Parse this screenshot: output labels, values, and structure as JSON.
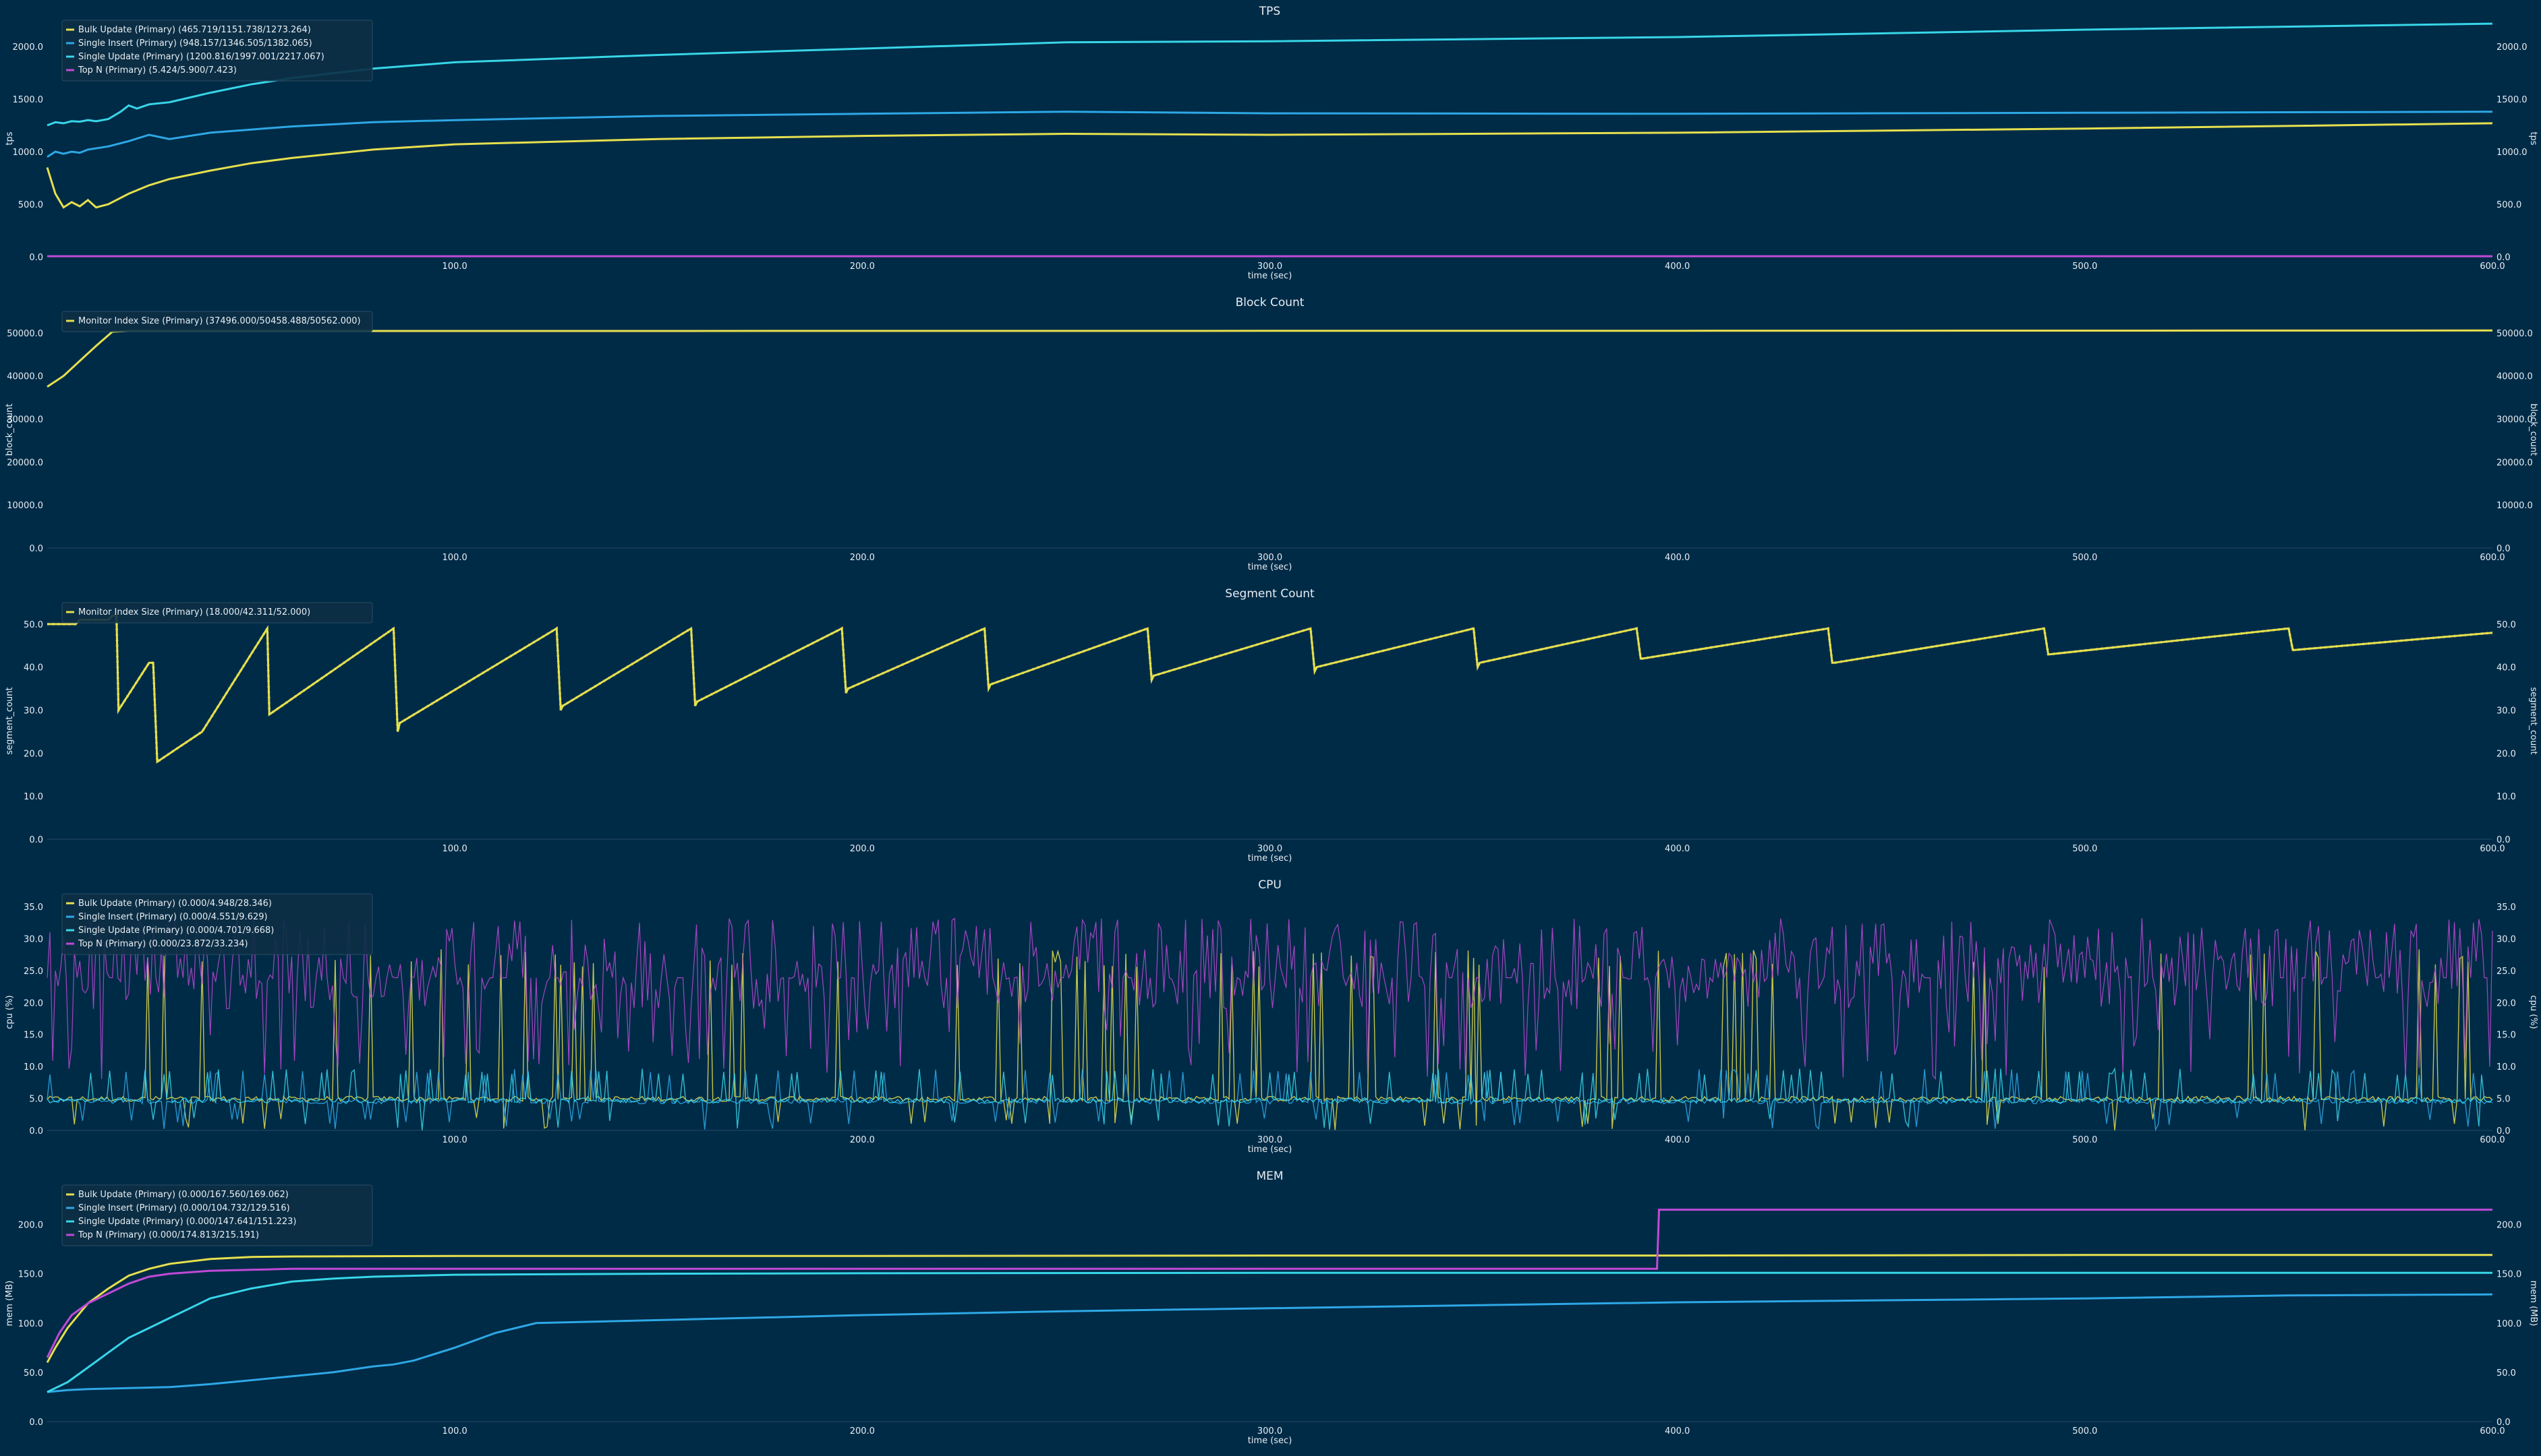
{
  "chart_data": [
    {
      "type": "line",
      "title": "TPS",
      "xlabel": "time (sec)",
      "ylabel": "tps",
      "xlim": [
        0,
        600
      ],
      "ylim": [
        0,
        2250
      ],
      "xticks": [
        "100.0",
        "200.0",
        "300.0",
        "400.0",
        "500.0",
        "600.0"
      ],
      "yticks": [
        "0.0",
        "500.0",
        "1000.0",
        "1500.0",
        "2000.0"
      ],
      "legend_position": "top-left",
      "series": [
        {
          "name": "Bulk Update (Primary) (465.719/1151.738/1273.264)",
          "color": "#e6e04e",
          "x": [
            0,
            2,
            4,
            6,
            8,
            10,
            12,
            15,
            20,
            25,
            30,
            40,
            50,
            60,
            80,
            100,
            150,
            200,
            250,
            300,
            400,
            500,
            600
          ],
          "y": [
            850,
            600,
            470,
            520,
            480,
            540,
            470,
            500,
            600,
            680,
            740,
            820,
            890,
            940,
            1020,
            1070,
            1120,
            1150,
            1170,
            1160,
            1180,
            1220,
            1270
          ]
        },
        {
          "name": "Single Insert (Primary) (948.157/1346.505/1382.065)",
          "color": "#2ea8e6",
          "x": [
            0,
            2,
            4,
            6,
            8,
            10,
            15,
            20,
            25,
            30,
            40,
            50,
            60,
            80,
            100,
            150,
            200,
            250,
            300,
            400,
            500,
            600
          ],
          "y": [
            950,
            1000,
            980,
            1000,
            990,
            1020,
            1050,
            1100,
            1160,
            1120,
            1180,
            1210,
            1240,
            1280,
            1300,
            1340,
            1360,
            1380,
            1365,
            1360,
            1370,
            1380
          ]
        },
        {
          "name": "Single Update (Primary) (1200.816/1997.001/2217.067)",
          "color": "#38d6e8",
          "x": [
            0,
            2,
            4,
            6,
            8,
            10,
            12,
            15,
            18,
            20,
            22,
            25,
            30,
            40,
            50,
            60,
            80,
            100,
            150,
            200,
            250,
            300,
            400,
            500,
            600
          ],
          "y": [
            1250,
            1280,
            1270,
            1290,
            1285,
            1300,
            1290,
            1310,
            1380,
            1440,
            1410,
            1450,
            1470,
            1560,
            1640,
            1700,
            1790,
            1850,
            1920,
            1980,
            2040,
            2050,
            2090,
            2160,
            2217
          ]
        },
        {
          "name": "Top N (Primary) (5.424/5.900/7.423)",
          "color": "#c04ad6",
          "x": [
            0,
            100,
            200,
            300,
            400,
            500,
            600
          ],
          "y": [
            6,
            6,
            6,
            6,
            6,
            6,
            6
          ]
        }
      ]
    },
    {
      "type": "line",
      "title": "Block Count",
      "xlabel": "time (sec)",
      "ylabel": "block_count",
      "xlim": [
        0,
        600
      ],
      "ylim": [
        0,
        55000
      ],
      "xticks": [
        "100.0",
        "200.0",
        "300.0",
        "400.0",
        "500.0",
        "600.0"
      ],
      "yticks": [
        "0.0",
        "10000.0",
        "20000.0",
        "30000.0",
        "40000.0",
        "50000.0"
      ],
      "legend_position": "top-left",
      "series": [
        {
          "name": "Monitor Index Size (Primary) (37496.000/50458.488/50562.000)",
          "color": "#e6e04e",
          "x": [
            0,
            4,
            8,
            12,
            16,
            20,
            100,
            200,
            300,
            400,
            500,
            600
          ],
          "y": [
            37496,
            40000,
            43500,
            47000,
            50300,
            50450,
            50460,
            50470,
            50480,
            50500,
            50530,
            50562
          ]
        }
      ]
    },
    {
      "type": "line",
      "title": "Segment Count",
      "xlabel": "time (sec)",
      "ylabel": "segment_count",
      "xlim": [
        0,
        600
      ],
      "ylim": [
        0,
        55
      ],
      "xticks": [
        "100.0",
        "200.0",
        "300.0",
        "400.0",
        "500.0",
        "600.0"
      ],
      "yticks": [
        "0.0",
        "10.0",
        "20.0",
        "30.0",
        "40.0",
        "50.0"
      ],
      "legend_position": "top-left",
      "series": [
        {
          "name": "Monitor Index Size (Primary) (18.000/42.311/52.000)",
          "color": "#e6e04e",
          "x": [
            0,
            7,
            8,
            15,
            16,
            17,
            17.5,
            25,
            26,
            27,
            38,
            54,
            54.5,
            85,
            86,
            86.5,
            125,
            126,
            126.5,
            158,
            159,
            159.5,
            195,
            196,
            196.5,
            230,
            231,
            231.5,
            270,
            271,
            271.5,
            310,
            311,
            311.5,
            350,
            351,
            351.5,
            390,
            391,
            391.5,
            437,
            438,
            438.5,
            490,
            491,
            491.5,
            550,
            551,
            551.5,
            600
          ],
          "y": [
            50,
            50,
            51,
            51,
            52,
            52,
            30,
            41,
            41,
            18,
            25,
            49,
            29,
            49,
            25,
            27,
            49,
            30,
            31,
            49,
            31,
            32,
            49,
            34,
            35,
            49,
            35,
            36,
            49,
            37,
            38,
            49,
            39,
            40,
            49,
            40,
            41,
            49,
            42,
            42,
            49,
            41,
            41,
            49,
            43,
            43,
            49,
            44,
            44,
            48
          ]
        }
      ]
    },
    {
      "type": "line",
      "title": "CPU",
      "xlabel": "time (sec)",
      "ylabel": "cpu (%)",
      "xlim": [
        0,
        600
      ],
      "ylim": [
        0,
        37
      ],
      "xticks": [
        "100.0",
        "200.0",
        "300.0",
        "400.0",
        "500.0",
        "600.0"
      ],
      "yticks": [
        "0.0",
        "5.0",
        "10.0",
        "15.0",
        "20.0",
        "25.0",
        "30.0",
        "35.0"
      ],
      "legend_position": "top-left",
      "series": [
        {
          "name": "Bulk Update (Primary) (0.000/4.948/28.346)",
          "color": "#e6e04e",
          "summary": [
            0,
            4.948,
            28.346
          ]
        },
        {
          "name": "Single Insert (Primary) (0.000/4.551/9.629)",
          "color": "#2ea8e6",
          "summary": [
            0,
            4.551,
            9.629
          ]
        },
        {
          "name": "Single Update (Primary) (0.000/4.701/9.668)",
          "color": "#38d6e8",
          "summary": [
            0,
            4.701,
            9.668
          ]
        },
        {
          "name": "Top N (Primary) (0.000/23.872/33.234)",
          "color": "#c04ad6",
          "summary": [
            0,
            23.872,
            33.234
          ]
        }
      ]
    },
    {
      "type": "line",
      "title": "MEM",
      "xlabel": "time (sec)",
      "ylabel": "mem (MB)",
      "xlim": [
        0,
        600
      ],
      "ylim": [
        0,
        240
      ],
      "xticks": [
        "100.0",
        "200.0",
        "300.0",
        "400.0",
        "500.0",
        "600.0"
      ],
      "yticks": [
        "0.0",
        "50.0",
        "100.0",
        "150.0",
        "200.0"
      ],
      "legend_position": "top-left",
      "series": [
        {
          "name": "Bulk Update (Primary) (0.000/167.560/169.062)",
          "color": "#e6e04e",
          "x": [
            0,
            2,
            5,
            10,
            15,
            20,
            25,
            30,
            40,
            50,
            60,
            100,
            200,
            300,
            400,
            500,
            600
          ],
          "y": [
            60,
            75,
            95,
            120,
            135,
            148,
            155,
            160,
            165,
            167,
            167.5,
            168,
            168,
            168.5,
            168.5,
            169,
            169
          ]
        },
        {
          "name": "Single Insert (Primary) (0.000/104.732/129.516)",
          "color": "#2ea8e6",
          "x": [
            0,
            5,
            10,
            20,
            30,
            40,
            50,
            60,
            70,
            80,
            85,
            90,
            100,
            110,
            120,
            150,
            200,
            250,
            300,
            350,
            400,
            500,
            550,
            600
          ],
          "y": [
            30,
            32,
            33,
            34,
            35,
            38,
            42,
            46,
            50,
            56,
            58,
            62,
            75,
            90,
            100,
            103,
            108,
            112,
            115,
            118,
            121,
            125,
            128,
            129
          ]
        },
        {
          "name": "Single Update (Primary) (0.000/147.641/151.223)",
          "color": "#38d6e8",
          "x": [
            0,
            5,
            10,
            15,
            20,
            25,
            30,
            35,
            40,
            50,
            60,
            70,
            80,
            100,
            150,
            200,
            300,
            400,
            500,
            600
          ],
          "y": [
            30,
            40,
            55,
            70,
            85,
            95,
            105,
            115,
            125,
            135,
            142,
            145,
            147,
            149,
            150,
            150.5,
            151,
            151,
            151,
            151
          ]
        },
        {
          "name": "Top N (Primary) (0.000/174.813/215.191)",
          "color": "#c04ad6",
          "x": [
            0,
            3,
            6,
            10,
            15,
            20,
            25,
            30,
            40,
            50,
            60,
            100,
            200,
            300,
            395,
            395.5,
            400,
            500,
            600
          ],
          "y": [
            65,
            90,
            108,
            120,
            130,
            140,
            147,
            150,
            153,
            154,
            155,
            155,
            155,
            155,
            155,
            215,
            215,
            215,
            215
          ]
        }
      ]
    }
  ]
}
